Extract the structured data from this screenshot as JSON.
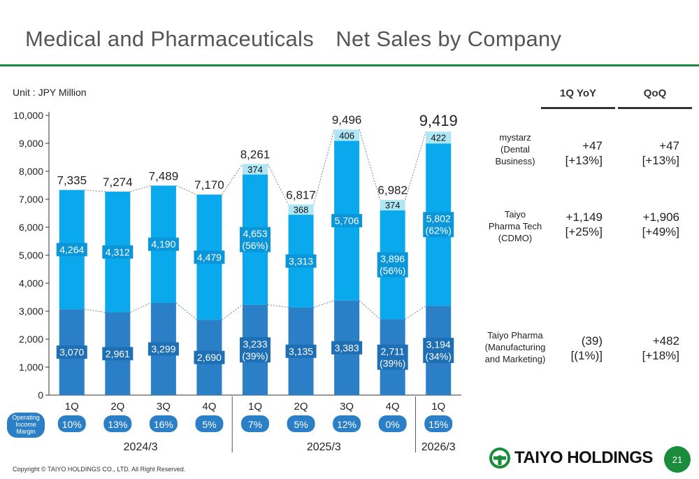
{
  "page": {
    "title": "Medical and Pharmaceuticals　Net Sales by Company",
    "unit": "Unit : JPY Million",
    "copyright": "Copyright © TAIYO HOLDINGS CO., LTD.  All Right Reserved.",
    "logo_text": "TAIYO HOLDINGS",
    "page_number": "21"
  },
  "colors": {
    "accent_green": "#1a8c3c",
    "series_dark": "#2a7fc6",
    "series_mid": "#0aa8ec",
    "series_light": "#aee6f6"
  },
  "chart_data": {
    "type": "bar",
    "stacked": true,
    "categories": [
      "1Q",
      "2Q",
      "3Q",
      "4Q",
      "1Q",
      "2Q",
      "3Q",
      "4Q",
      "1Q"
    ],
    "fiscal_years": [
      {
        "label": "2024/3",
        "from": 0,
        "to": 3
      },
      {
        "label": "2025/3",
        "from": 4,
        "to": 7
      },
      {
        "label": "2026/3",
        "from": 8,
        "to": 8
      }
    ],
    "series": [
      {
        "values": [
          3070,
          2961,
          3299,
          2690,
          3233,
          3135,
          3383,
          2711,
          3194
        ],
        "labels": [
          "3,070",
          "2,961",
          "3,299",
          "2,690",
          "3,233\n(39%)",
          "3,135",
          "3,383",
          "2,711\n(39%)",
          "3,194\n(34%)"
        ],
        "color": "#2a7fc6"
      },
      {
        "values": [
          4264,
          4312,
          4190,
          4479,
          4653,
          3313,
          5706,
          3896,
          5802
        ],
        "labels": [
          "4,264",
          "4,312",
          "4,190",
          "4,479",
          "4,653\n(56%)",
          "3,313",
          "5,706",
          "3,896\n(56%)",
          "5,802\n(62%)"
        ],
        "color": "#0aa8ec"
      },
      {
        "values": [
          null,
          null,
          null,
          null,
          374,
          368,
          406,
          374,
          422
        ],
        "labels": [
          "",
          "",
          "",
          "",
          "374",
          "368",
          "406",
          "374",
          "422"
        ],
        "color": "#aee6f6"
      }
    ],
    "totals": [
      7335,
      7274,
      7489,
      7170,
      8261,
      6817,
      9496,
      6982,
      9419
    ],
    "total_labels": [
      "7,335",
      "7,274",
      "7,489",
      "7,170",
      "8,261",
      "6,817",
      "9,496",
      "6,982",
      "9,419"
    ],
    "ylim": [
      0,
      10000
    ],
    "yticks": [
      "0",
      "1,000",
      "2,000",
      "3,000",
      "4,000",
      "5,000",
      "6,000",
      "7,000",
      "8,000",
      "9,000",
      "10,000"
    ],
    "grid": false,
    "operating_margin": {
      "label": "Operating\nIncome\nMargin",
      "values": [
        "10%",
        "13%",
        "16%",
        "5%",
        "7%",
        "5%",
        "12%",
        "0%",
        "15%"
      ]
    }
  },
  "table": {
    "headers": {
      "yoy": "1Q YoY",
      "qoq": "QoQ"
    },
    "rows": [
      {
        "company": "mystarz\n(Dental\nBusiness)",
        "yoy": "+47\n[+13%]",
        "qoq": "+47\n[+13%]"
      },
      {
        "company": "Taiyo\nPharma Tech\n(CDMO)",
        "yoy": "+1,149\n[+25%]",
        "qoq": "+1,906\n[+49%]"
      },
      {
        "company": "Taiyo Pharma\n(Manufacturing\nand Marketing)",
        "yoy": "(39)\n[(1%)]",
        "qoq": "+482\n[+18%]"
      }
    ]
  }
}
